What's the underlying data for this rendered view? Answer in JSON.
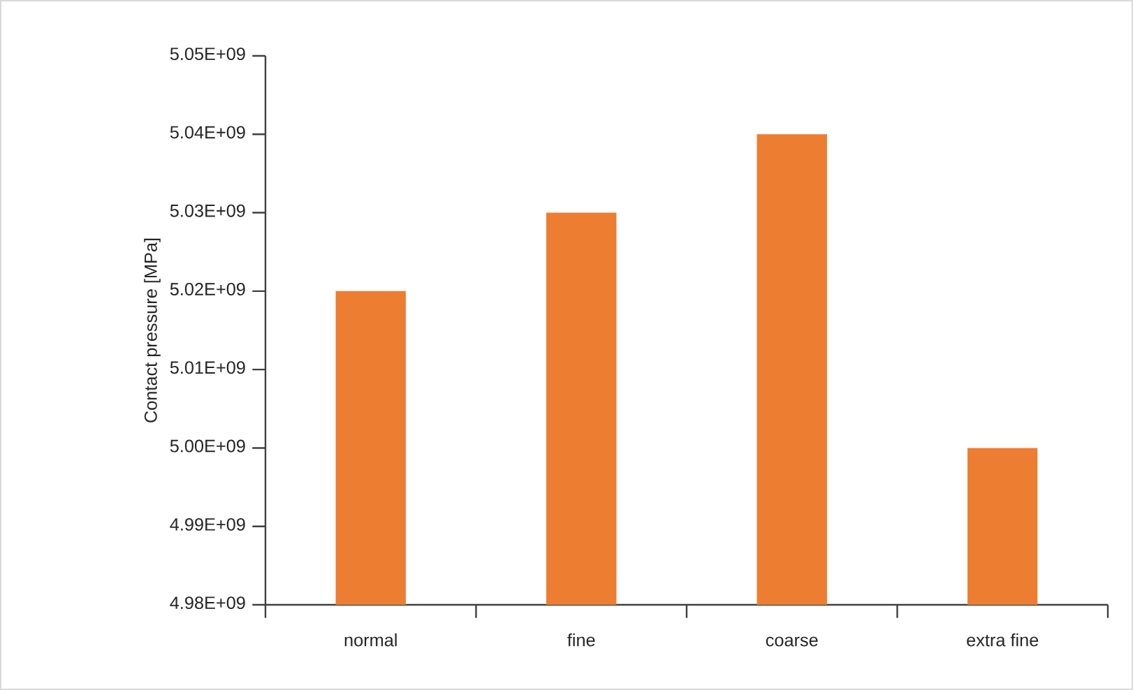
{
  "chart_data": {
    "type": "bar",
    "ylabel": "Contact pressure [MPa]",
    "categories": [
      "normal",
      "fine",
      "coarse",
      "extra fine"
    ],
    "values": [
      5020000000.0,
      5030000000.0,
      5040000000.0,
      5000000000.0
    ],
    "color": "#ed7d31",
    "ylim": [
      4980000000.0,
      5050000000.0
    ],
    "yticks": [
      {
        "value": 4980000000.0,
        "label": "4.98E+09"
      },
      {
        "value": 4990000000.0,
        "label": "4.99E+09"
      },
      {
        "value": 5000000000.0,
        "label": "5.00E+09"
      },
      {
        "value": 5010000000.0,
        "label": "5.01E+09"
      },
      {
        "value": 5020000000.0,
        "label": "5.02E+09"
      },
      {
        "value": 5030000000.0,
        "label": "5.03E+09"
      },
      {
        "value": 5040000000.0,
        "label": "5.04E+09"
      },
      {
        "value": 5050000000.0,
        "label": "5.05E+09"
      }
    ],
    "grid": false
  }
}
